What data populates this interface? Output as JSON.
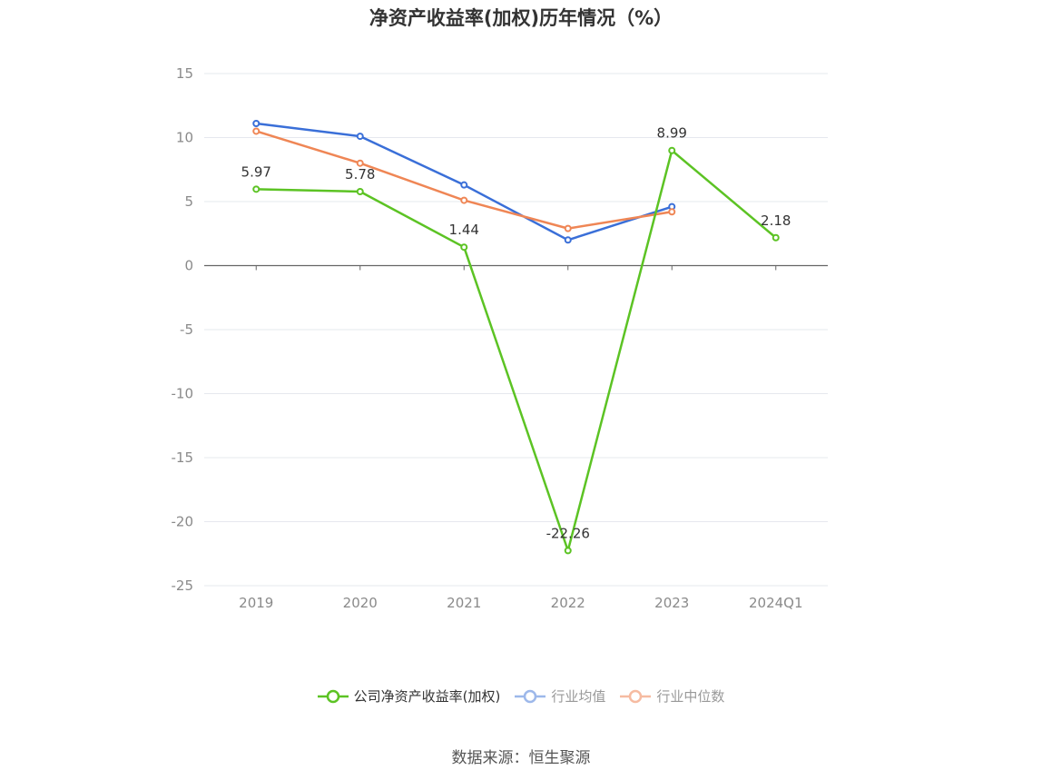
{
  "chart_data": {
    "type": "line",
    "title": "净资产收益率(加权)历年情况（%）",
    "categories": [
      "2019",
      "2020",
      "2021",
      "2022",
      "2023",
      "2024Q1"
    ],
    "ylim": [
      -25,
      15
    ],
    "yticks": [
      15,
      10,
      5,
      0,
      -5,
      -10,
      -15,
      -20,
      -25
    ],
    "grid": true,
    "legend_position": "bottom",
    "series": [
      {
        "name": "公司净资产收益率(加权)",
        "color": "#5cc324",
        "values": [
          5.97,
          5.78,
          1.44,
          -22.26,
          8.99,
          2.18
        ],
        "labels": [
          "5.97",
          "5.78",
          "1.44",
          "-22.26",
          "8.99",
          "2.18"
        ]
      },
      {
        "name": "行业均值",
        "color": "#3a6fd8",
        "values": [
          11.1,
          10.1,
          6.3,
          2.0,
          4.6,
          null
        ]
      },
      {
        "name": "行业中位数",
        "color": "#ef8655",
        "values": [
          10.5,
          8.0,
          5.1,
          2.9,
          4.2,
          null
        ]
      }
    ],
    "legend": [
      {
        "name": "公司净资产收益率(加权)",
        "color": "#5cc324",
        "text_color": "#333333"
      },
      {
        "name": "行业均值",
        "color": "#9db8ea",
        "text_color": "#999999"
      },
      {
        "name": "行业中位数",
        "color": "#f6bba1",
        "text_color": "#999999"
      }
    ]
  },
  "source": "数据来源：恒生聚源"
}
